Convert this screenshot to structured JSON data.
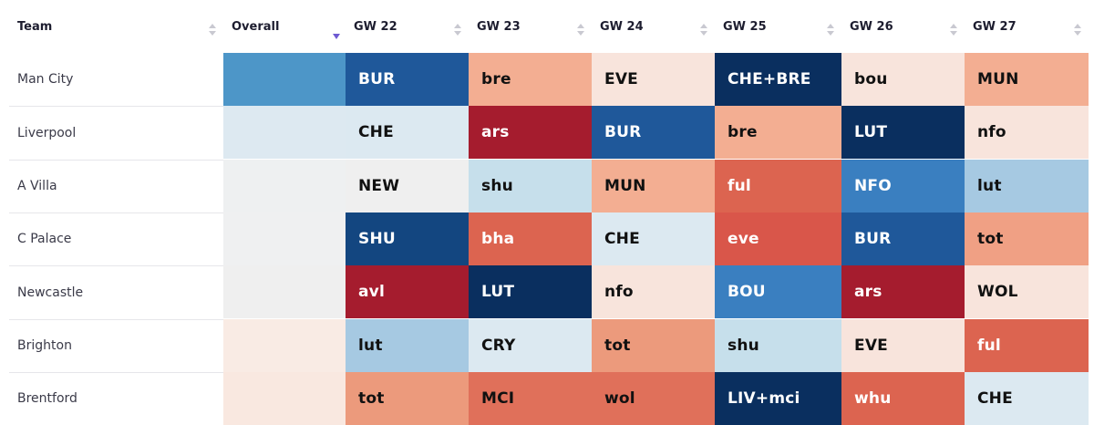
{
  "header": {
    "team": "Team",
    "overall": "Overall",
    "gameweeks": [
      "GW 22",
      "GW 23",
      "GW 24",
      "GW 25",
      "GW 26",
      "GW 27"
    ]
  },
  "colors": {
    "blue_darkest": "#0a2f5f",
    "blue_dark": "#1f589a",
    "blue_mid": "#3a7fc0",
    "blue_light": "#a6c9e2",
    "blue_pale": "#dce9f1",
    "neutral": "#efefef",
    "peach_pale": "#f8e4dc",
    "peach": "#f3ae92",
    "salmon": "#e88a72",
    "red_orange": "#dc6450",
    "red": "#a51c2e",
    "text_dark": "#111111",
    "text_light": "#ffffff"
  },
  "rows": [
    {
      "team": "Man City",
      "overall_color": "#4d96c8",
      "fixtures": [
        {
          "label": "BUR",
          "bg": "#1f589a",
          "fg": "#ffffff"
        },
        {
          "label": "bre",
          "bg": "#f3ae92",
          "fg": "#111111"
        },
        {
          "label": "EVE",
          "bg": "#f8e4dc",
          "fg": "#111111"
        },
        {
          "label": "CHE+BRE",
          "bg": "#0a2f5f",
          "fg": "#ffffff"
        },
        {
          "label": "bou",
          "bg": "#f8e4dc",
          "fg": "#111111"
        },
        {
          "label": "MUN",
          "bg": "#f3ae92",
          "fg": "#111111"
        }
      ]
    },
    {
      "team": "Liverpool",
      "overall_color": "#dde9f1",
      "fixtures": [
        {
          "label": "CHE",
          "bg": "#dce9f1",
          "fg": "#111111"
        },
        {
          "label": "ars",
          "bg": "#a51c2e",
          "fg": "#ffffff"
        },
        {
          "label": "BUR",
          "bg": "#1f589a",
          "fg": "#ffffff"
        },
        {
          "label": "bre",
          "bg": "#f3ae92",
          "fg": "#111111"
        },
        {
          "label": "LUT",
          "bg": "#0a2f5f",
          "fg": "#ffffff"
        },
        {
          "label": "nfo",
          "bg": "#f8e4dc",
          "fg": "#111111"
        }
      ]
    },
    {
      "team": "A Villa",
      "overall_color": "#eef0f1",
      "fixtures": [
        {
          "label": "NEW",
          "bg": "#efefef",
          "fg": "#111111"
        },
        {
          "label": "shu",
          "bg": "#c6dfeb",
          "fg": "#111111"
        },
        {
          "label": "MUN",
          "bg": "#f3ae92",
          "fg": "#111111"
        },
        {
          "label": "ful",
          "bg": "#dc6450",
          "fg": "#ffffff"
        },
        {
          "label": "NFO",
          "bg": "#3a7fc0",
          "fg": "#ffffff"
        },
        {
          "label": "lut",
          "bg": "#a6c9e2",
          "fg": "#111111"
        }
      ]
    },
    {
      "team": "C Palace",
      "overall_color": "#eff0f1",
      "fixtures": [
        {
          "label": "SHU",
          "bg": "#134680",
          "fg": "#ffffff"
        },
        {
          "label": "bha",
          "bg": "#dc6450",
          "fg": "#ffffff"
        },
        {
          "label": "CHE",
          "bg": "#dce9f1",
          "fg": "#111111"
        },
        {
          "label": "eve",
          "bg": "#d9564a",
          "fg": "#ffffff"
        },
        {
          "label": "BUR",
          "bg": "#1f589a",
          "fg": "#ffffff"
        },
        {
          "label": "tot",
          "bg": "#f0a084",
          "fg": "#111111"
        }
      ]
    },
    {
      "team": "Newcastle",
      "overall_color": "#efefef",
      "fixtures": [
        {
          "label": "avl",
          "bg": "#a51c2e",
          "fg": "#ffffff"
        },
        {
          "label": "LUT",
          "bg": "#0a2f5f",
          "fg": "#ffffff"
        },
        {
          "label": "nfo",
          "bg": "#f8e4dc",
          "fg": "#111111"
        },
        {
          "label": "BOU",
          "bg": "#3a7fc0",
          "fg": "#ffffff"
        },
        {
          "label": "ars",
          "bg": "#a51c2e",
          "fg": "#ffffff"
        },
        {
          "label": "WOL",
          "bg": "#f8e4dc",
          "fg": "#111111"
        }
      ]
    },
    {
      "team": "Brighton",
      "overall_color": "#f9ebe4",
      "fixtures": [
        {
          "label": "lut",
          "bg": "#a6c9e2",
          "fg": "#111111"
        },
        {
          "label": "CRY",
          "bg": "#dce9f1",
          "fg": "#111111"
        },
        {
          "label": "tot",
          "bg": "#ec9a7c",
          "fg": "#111111"
        },
        {
          "label": "shu",
          "bg": "#c6dfeb",
          "fg": "#111111"
        },
        {
          "label": "EVE",
          "bg": "#f8e4dc",
          "fg": "#111111"
        },
        {
          "label": "ful",
          "bg": "#dc6450",
          "fg": "#ffffff"
        }
      ]
    },
    {
      "team": "Brentford",
      "overall_color": "#f9e8e0",
      "fixtures": [
        {
          "label": "tot",
          "bg": "#ec9a7c",
          "fg": "#111111"
        },
        {
          "label": "MCI",
          "bg": "#e0705a",
          "fg": "#111111"
        },
        {
          "label": "wol",
          "bg": "#e0705a",
          "fg": "#111111"
        },
        {
          "label": "LIV+mci",
          "bg": "#0a2f5f",
          "fg": "#ffffff"
        },
        {
          "label": "whu",
          "bg": "#dc6450",
          "fg": "#ffffff"
        },
        {
          "label": "CHE",
          "bg": "#dce9f1",
          "fg": "#111111"
        }
      ]
    }
  ]
}
